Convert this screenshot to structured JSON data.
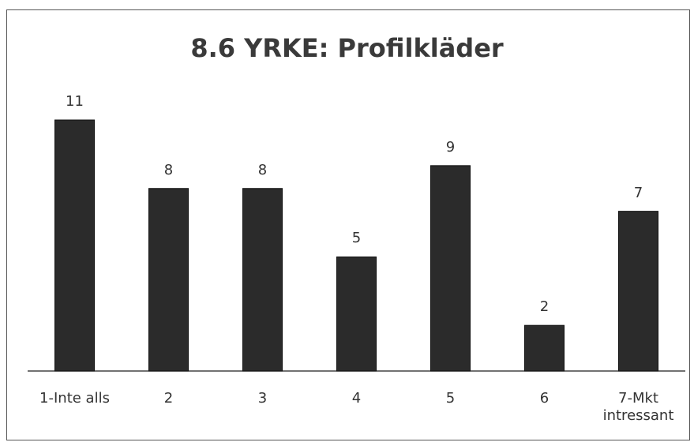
{
  "chart_data": {
    "type": "bar",
    "title": "8.6 YRKE: Profilkläder",
    "categories": [
      "1-Inte alls",
      "2",
      "3",
      "4",
      "5",
      "6",
      "7-Mkt intressant"
    ],
    "values": [
      11,
      8,
      8,
      5,
      9,
      2,
      7
    ],
    "color": "#2b2b2b"
  }
}
